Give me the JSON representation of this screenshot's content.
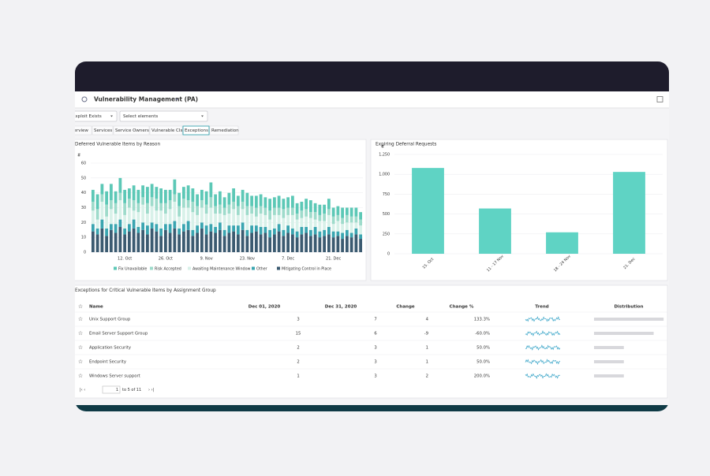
{
  "header": {
    "title": "Vulnerability Management (PA)"
  },
  "filters": [
    "Exploit Exists",
    "Select elements"
  ],
  "tabs": [
    "Overview",
    "Services",
    "Service Owners",
    "Vulnerable CIs",
    "Exceptions",
    "Remediation"
  ],
  "active_tab": 4,
  "charts": {
    "chart_data": [
      {
        "type": "stacked-bar",
        "title": "Deferred Vulnerable Items by Reason",
        "y_label": "#",
        "categories": [
          null,
          null,
          null,
          null,
          null,
          null,
          null,
          "12. Oct",
          null,
          null,
          null,
          null,
          null,
          null,
          null,
          null,
          "26. Oct",
          null,
          null,
          null,
          null,
          null,
          null,
          null,
          null,
          "9. Nov",
          null,
          null,
          null,
          null,
          null,
          null,
          null,
          null,
          "23. Nov",
          null,
          null,
          null,
          null,
          null,
          null,
          null,
          null,
          "7. Dec",
          null,
          null,
          null,
          null,
          null,
          null,
          null,
          null,
          null,
          "21. Dec",
          null,
          null,
          null,
          null,
          null,
          null
        ],
        "series": [
          {
            "name": "Fix Unavailable",
            "color": "#5cc8b6",
            "values": [
              8,
              10,
              7,
              9,
              11,
              8,
              10,
              9,
              7,
              10,
              9,
              8,
              11,
              9,
              8,
              10,
              9,
              7,
              10,
              9,
              8,
              10,
              9,
              8,
              7,
              9,
              10,
              8,
              9,
              7,
              8,
              9,
              7,
              8,
              9,
              7,
              8,
              8,
              7,
              8,
              7,
              8,
              7,
              7,
              8,
              7,
              6,
              7,
              8,
              6,
              7,
              6,
              7,
              6,
              6,
              7,
              5,
              6,
              6,
              5
            ]
          },
          {
            "name": "Risk Accepted",
            "color": "#9edbcb",
            "values": [
              6,
              7,
              5,
              8,
              6,
              7,
              5,
              8,
              6,
              7,
              6,
              5,
              7,
              6,
              8,
              5,
              7,
              6,
              5,
              7,
              6,
              5,
              7,
              6,
              5,
              6,
              7,
              5,
              6,
              5,
              6,
              5,
              6,
              5,
              6,
              5,
              6,
              5,
              5,
              6,
              5,
              5,
              6,
              5,
              5,
              4,
              5,
              5,
              4,
              5,
              4,
              5,
              4,
              5,
              4,
              4,
              5,
              4,
              4,
              4
            ]
          },
          {
            "name": "Awaiting Maintenance Window",
            "color": "#d8f1e9",
            "values": [
              9,
              6,
              12,
              8,
              10,
              7,
              13,
              9,
              11,
              6,
              10,
              12,
              8,
              11,
              9,
              12,
              7,
              10,
              13,
              8,
              11,
              9,
              12,
              7,
              10,
              8,
              11,
              9,
              6,
              10,
              8,
              11,
              7,
              9,
              10,
              8,
              6,
              9,
              8,
              7,
              9,
              6,
              8,
              7,
              9,
              8,
              6,
              7,
              8,
              5,
              7,
              6,
              8,
              5,
              7,
              6,
              5,
              7,
              4,
              6
            ]
          },
          {
            "name": "Other",
            "color": "#3aa5b0",
            "values": [
              5,
              4,
              6,
              5,
              4,
              6,
              5,
              4,
              5,
              6,
              4,
              5,
              6,
              4,
              5,
              5,
              4,
              6,
              5,
              4,
              5,
              6,
              4,
              5,
              4,
              6,
              5,
              4,
              5,
              4,
              5,
              4,
              6,
              5,
              4,
              5,
              4,
              5,
              4,
              5,
              4,
              5,
              4,
              5,
              4,
              4,
              5,
              4,
              4,
              5,
              4,
              4,
              5,
              4,
              3,
              4,
              4,
              3,
              4,
              3
            ]
          },
          {
            "name": "Mitigating Control in Place",
            "color": "#3b5a70",
            "values": [
              14,
              12,
              16,
              11,
              15,
              13,
              17,
              12,
              14,
              16,
              13,
              15,
              12,
              16,
              14,
              11,
              15,
              13,
              16,
              12,
              14,
              15,
              11,
              13,
              16,
              12,
              14,
              13,
              15,
              11,
              13,
              14,
              12,
              15,
              11,
              13,
              14,
              12,
              13,
              10,
              12,
              14,
              11,
              13,
              12,
              10,
              12,
              13,
              11,
              12,
              10,
              11,
              12,
              10,
              11,
              9,
              11,
              10,
              12,
              9
            ]
          }
        ],
        "ylim": [
          0,
          60
        ],
        "yticks": [
          0,
          10,
          20,
          30,
          40,
          50,
          60
        ],
        "grid": true,
        "legend": "bottom"
      },
      {
        "type": "bar",
        "title": "Expiring Deferral Requests",
        "y_label": "#",
        "categories": [
          "15. Oct",
          "11 - 17 Nov",
          "18 - 24 Nov",
          "21. Dec"
        ],
        "values": [
          1080,
          570,
          270,
          1030
        ],
        "color": "#5fd3c4",
        "ylim": [
          0,
          1250
        ],
        "yticks": [
          0,
          250,
          500,
          750,
          {
            "value": 1000,
            "label": "1,000"
          },
          {
            "value": 1250,
            "label": "1,250"
          }
        ],
        "grid": true
      }
    ]
  },
  "table": {
    "title": "Exceptions for Critical Vulnerable Items by Assignment Group",
    "columns": [
      "Name",
      "Dec 01, 2020",
      "Dec 31, 2020",
      "Change",
      "Change %",
      "Trend",
      "Distribution"
    ],
    "rows": [
      [
        "Unix Support Group",
        3,
        7,
        4,
        "133.3%"
      ],
      [
        "Email Server Support Group",
        15,
        6,
        -9,
        "-60.0%"
      ],
      [
        "Application Security",
        2,
        3,
        1,
        "50.0%"
      ],
      [
        "Endpoint Security",
        2,
        3,
        1,
        "50.0%"
      ],
      [
        "Windows Server support",
        1,
        3,
        2,
        "200.0%"
      ]
    ]
  },
  "pagination": {
    "page": "1",
    "range": "to 5 of 11"
  }
}
